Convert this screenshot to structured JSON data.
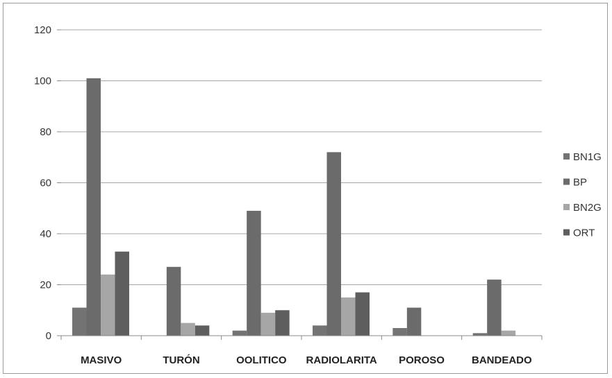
{
  "chart_data": {
    "type": "bar",
    "categories": [
      "MASIVO",
      "TURÓN",
      "OOLITICO",
      "RADIOLARITA",
      "POROSO",
      "BANDEADO"
    ],
    "series": [
      {
        "name": "BN1G",
        "values": [
          11,
          0,
          2,
          4,
          3,
          1
        ],
        "color": "#737373"
      },
      {
        "name": "BP",
        "values": [
          101,
          27,
          49,
          72,
          11,
          22
        ],
        "color": "#6b6b6b"
      },
      {
        "name": "BN2G",
        "values": [
          24,
          5,
          9,
          15,
          0,
          2
        ],
        "color": "#a6a6a6"
      },
      {
        "name": "ORT",
        "values": [
          33,
          4,
          10,
          17,
          0,
          0
        ],
        "color": "#5e5e5e"
      }
    ],
    "ylim": [
      0,
      120
    ],
    "yticks": [
      "0",
      "20",
      "40",
      "60",
      "80",
      "100",
      "120"
    ],
    "grid": true,
    "legend_position": "right",
    "title": "",
    "xlabel": "",
    "ylabel": ""
  }
}
